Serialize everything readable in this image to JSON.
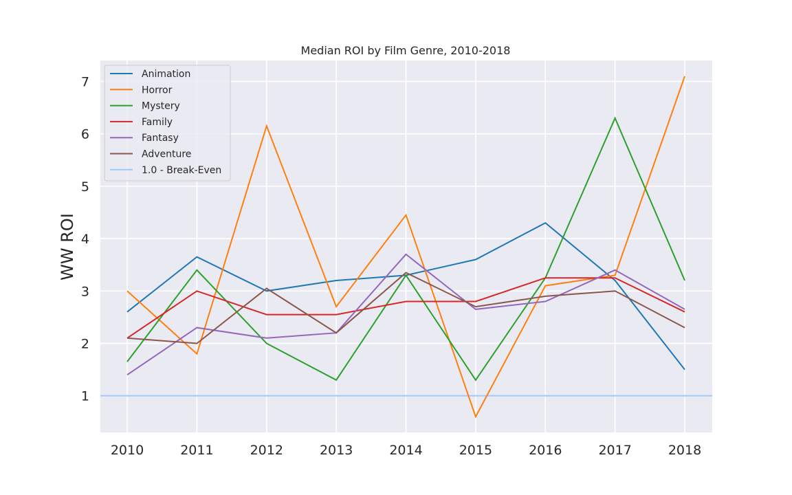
{
  "chart_data": {
    "type": "line",
    "title": "Median ROI by Film Genre, 2010-2018",
    "xlabel": "",
    "ylabel": "WW ROI",
    "x": [
      "2010",
      "2011",
      "2012",
      "2013",
      "2014",
      "2015",
      "2016",
      "2017",
      "2018"
    ],
    "ylim": [
      0.3,
      7.4
    ],
    "yticks": [
      1,
      2,
      3,
      4,
      5,
      6,
      7
    ],
    "grid": true,
    "legend_position": "top-left",
    "series": [
      {
        "name": "Animation",
        "color": "#1f77b4",
        "values": [
          2.6,
          3.65,
          3.0,
          3.2,
          3.3,
          3.6,
          4.3,
          3.2,
          1.5
        ]
      },
      {
        "name": "Horror",
        "color": "#ff7f0e",
        "values": [
          3.0,
          1.8,
          6.15,
          2.7,
          4.45,
          0.6,
          3.1,
          3.3,
          7.1
        ]
      },
      {
        "name": "Mystery",
        "color": "#2ca02c",
        "values": [
          1.65,
          3.4,
          2.0,
          1.3,
          3.3,
          1.3,
          3.25,
          6.3,
          3.2
        ]
      },
      {
        "name": "Family",
        "color": "#d62728",
        "values": [
          2.1,
          3.0,
          2.55,
          2.55,
          2.8,
          2.8,
          3.25,
          3.25,
          2.6
        ]
      },
      {
        "name": "Fantasy",
        "color": "#9467bd",
        "values": [
          1.4,
          2.3,
          2.1,
          2.2,
          3.7,
          2.65,
          2.8,
          3.4,
          2.65
        ]
      },
      {
        "name": "Adventure",
        "color": "#8c564b",
        "values": [
          2.1,
          2.0,
          3.05,
          2.2,
          3.35,
          2.7,
          2.9,
          3.0,
          2.3
        ]
      }
    ],
    "reference_lines": [
      {
        "name": "1.0 - Break-Even",
        "value": 1.0,
        "color": "#a1c9f4"
      }
    ]
  }
}
